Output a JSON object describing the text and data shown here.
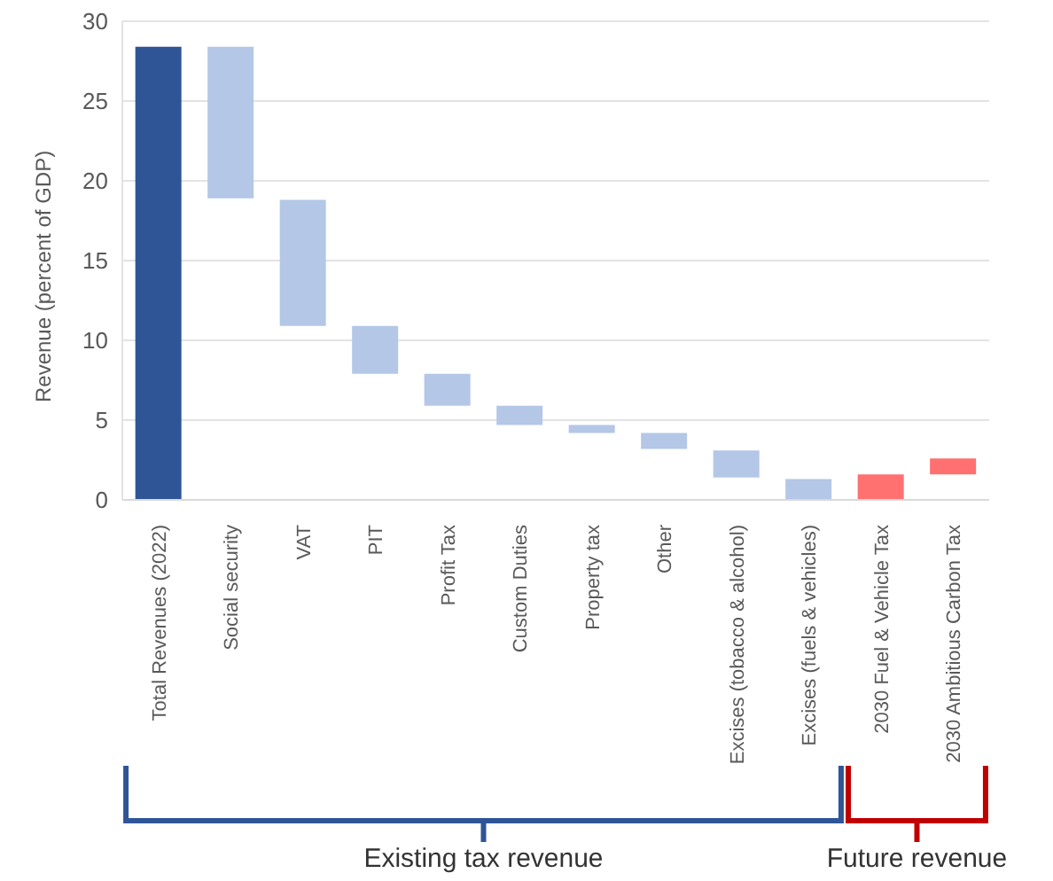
{
  "chart_data": {
    "type": "bar",
    "ylabel": "Revenue (percent of GDP)",
    "categories": [
      "Total  Revenues (2022)",
      "Social security",
      "VAT",
      "PIT",
      "Profit Tax",
      "Custom Duties",
      "Property tax",
      "Other",
      "Excises (tobacco & alcohol)",
      "Excises (fuels & vehicles)",
      "2030 Fuel & Vehicle Tax",
      "2030 Ambitious Carbon Tax"
    ],
    "values": [
      28.4,
      9.5,
      7.9,
      3.0,
      2.0,
      1.2,
      0.5,
      1.0,
      1.7,
      1.3,
      1.6,
      1.0
    ],
    "base": [
      0,
      18.9,
      10.9,
      7.9,
      5.9,
      4.7,
      4.2,
      3.2,
      1.4,
      0,
      0,
      1.6
    ],
    "colors": [
      "#2f5597",
      "#b4c7e7",
      "#b4c7e7",
      "#b4c7e7",
      "#b4c7e7",
      "#b4c7e7",
      "#b4c7e7",
      "#b4c7e7",
      "#b4c7e7",
      "#b4c7e7",
      "#ff7070",
      "#ff7070"
    ],
    "ylim": [
      0,
      30
    ],
    "yticks": [
      0,
      5,
      10,
      15,
      20,
      25,
      30
    ],
    "grid": "y",
    "annotations": [
      "Existing tax revenue",
      "Future revenue"
    ]
  }
}
